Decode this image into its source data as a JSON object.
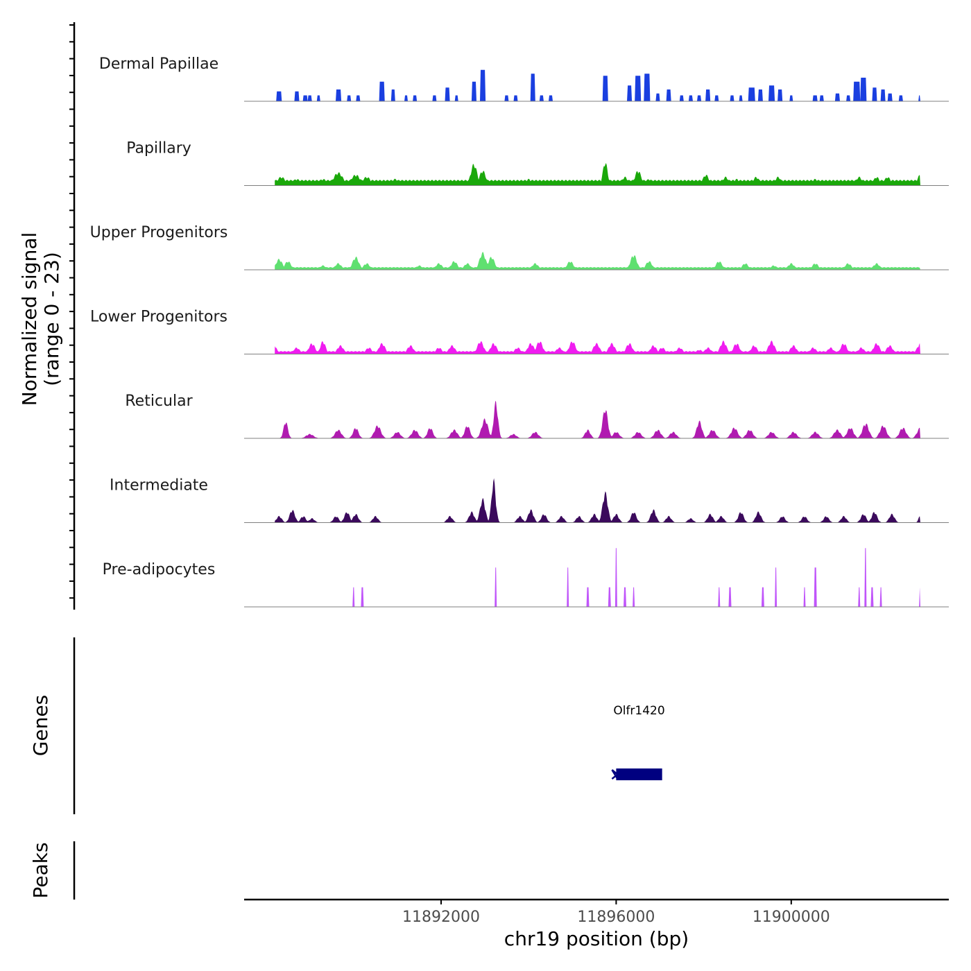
{
  "chart_data": {
    "type": "area",
    "title": "",
    "ylabel": "Normalized signal\n(range 0 - 23)",
    "ylabel_lines": [
      "Normalized signal",
      "(range 0 - 23)"
    ],
    "xlabel": "chr19 position (bp)",
    "x_range": [
      11887500,
      11903600
    ],
    "ylim": [
      0,
      23
    ],
    "x_ticks": [
      11892000,
      11896000,
      11900000
    ],
    "x_tick_labels": [
      "11892000",
      "11896000",
      "11900000"
    ],
    "tracks": [
      {
        "name": "Dermal Papillae",
        "color": "#1a3fe0",
        "style": "blocky",
        "peaks": [
          [
            11888300,
            5,
            9
          ],
          [
            11888700,
            5,
            8
          ],
          [
            11888900,
            3,
            8
          ],
          [
            11889000,
            3,
            6
          ],
          [
            11889200,
            3,
            6
          ],
          [
            11889650,
            6,
            9
          ],
          [
            11889900,
            3,
            6
          ],
          [
            11890100,
            3,
            6
          ],
          [
            11890650,
            10,
            10
          ],
          [
            11890900,
            6,
            6
          ],
          [
            11891200,
            3,
            6
          ],
          [
            11891400,
            3,
            6
          ],
          [
            11891850,
            3,
            6
          ],
          [
            11892150,
            7,
            8
          ],
          [
            11892350,
            3,
            6
          ],
          [
            11892750,
            10,
            8
          ],
          [
            11892950,
            16,
            10
          ],
          [
            11893500,
            3,
            6
          ],
          [
            11893700,
            3,
            6
          ],
          [
            11894100,
            14,
            8
          ],
          [
            11894300,
            3,
            6
          ],
          [
            11894500,
            3,
            6
          ],
          [
            11895750,
            13,
            10
          ],
          [
            11896300,
            8,
            8
          ],
          [
            11896500,
            13,
            10
          ],
          [
            11896700,
            14,
            10
          ],
          [
            11896950,
            4,
            6
          ],
          [
            11897200,
            6,
            8
          ],
          [
            11897500,
            3,
            6
          ],
          [
            11897700,
            3,
            6
          ],
          [
            11897900,
            3,
            6
          ],
          [
            11898100,
            6,
            8
          ],
          [
            11898300,
            3,
            6
          ],
          [
            11898650,
            3,
            6
          ],
          [
            11898850,
            3,
            6
          ],
          [
            11899100,
            7,
            12
          ],
          [
            11899300,
            6,
            8
          ],
          [
            11899550,
            8,
            10
          ],
          [
            11899750,
            6,
            8
          ],
          [
            11900000,
            3,
            6
          ],
          [
            11900550,
            3,
            8
          ],
          [
            11900700,
            3,
            6
          ],
          [
            11901050,
            4,
            8
          ],
          [
            11901300,
            3,
            6
          ],
          [
            11901500,
            10,
            12
          ],
          [
            11901650,
            12,
            10
          ],
          [
            11901900,
            7,
            8
          ],
          [
            11902100,
            6,
            8
          ],
          [
            11902250,
            4,
            8
          ],
          [
            11902500,
            3,
            6
          ],
          [
            11902950,
            3,
            6
          ]
        ]
      },
      {
        "name": "Papillary",
        "color": "#1aa80a",
        "style": "smooth",
        "bg": [
          11888200,
          11902950,
          2.5
        ],
        "peaks": [
          [
            11888350,
            4,
            16
          ],
          [
            11888700,
            3,
            16
          ],
          [
            11889300,
            3,
            16
          ],
          [
            11889650,
            6,
            18
          ],
          [
            11890050,
            5,
            18
          ],
          [
            11890300,
            4,
            16
          ],
          [
            11890950,
            3,
            16
          ],
          [
            11891200,
            2,
            12
          ],
          [
            11892750,
            10,
            12
          ],
          [
            11892950,
            7,
            12
          ],
          [
            11893350,
            2,
            12
          ],
          [
            11893700,
            2,
            12
          ],
          [
            11894000,
            3,
            12
          ],
          [
            11894250,
            2,
            12
          ],
          [
            11895750,
            11,
            9
          ],
          [
            11896200,
            4,
            12
          ],
          [
            11896500,
            7,
            12
          ],
          [
            11896750,
            3,
            12
          ],
          [
            11898050,
            5,
            12
          ],
          [
            11898500,
            4,
            12
          ],
          [
            11898750,
            3,
            12
          ],
          [
            11899200,
            4,
            12
          ],
          [
            11899700,
            4,
            12
          ],
          [
            11900100,
            2,
            12
          ],
          [
            11900550,
            3,
            12
          ],
          [
            11901000,
            2,
            12
          ],
          [
            11901550,
            4,
            12
          ],
          [
            11901950,
            4,
            12
          ],
          [
            11902200,
            4,
            12
          ],
          [
            11902950,
            5,
            12
          ]
        ]
      },
      {
        "name": "Upper Progenitors",
        "color": "#5fe070",
        "style": "smooth",
        "bg": [
          11888200,
          11902950,
          1.2
        ],
        "peaks": [
          [
            11888300,
            5,
            12
          ],
          [
            11888500,
            4,
            12
          ],
          [
            11889300,
            2,
            12
          ],
          [
            11889650,
            3,
            12
          ],
          [
            11890050,
            6,
            12
          ],
          [
            11890300,
            3,
            12
          ],
          [
            11891500,
            2,
            12
          ],
          [
            11891950,
            3,
            12
          ],
          [
            11892300,
            4,
            12
          ],
          [
            11892600,
            3,
            12
          ],
          [
            11892950,
            8,
            12
          ],
          [
            11893150,
            6,
            12
          ],
          [
            11894150,
            3,
            12
          ],
          [
            11894950,
            4,
            12
          ],
          [
            11896400,
            7,
            12
          ],
          [
            11896750,
            4,
            12
          ],
          [
            11898350,
            4,
            12
          ],
          [
            11898950,
            3,
            12
          ],
          [
            11899600,
            2,
            12
          ],
          [
            11900000,
            3,
            12
          ],
          [
            11900550,
            3,
            12
          ],
          [
            11901300,
            3,
            12
          ],
          [
            11901950,
            3,
            12
          ]
        ]
      },
      {
        "name": "Lower Progenitors",
        "color": "#f01cf0",
        "style": "smooth",
        "bg": [
          11888200,
          11902950,
          1.3
        ],
        "peaks": [
          [
            11888200,
            4,
            8
          ],
          [
            11888700,
            3,
            12
          ],
          [
            11889050,
            5,
            12
          ],
          [
            11889300,
            6,
            10
          ],
          [
            11889700,
            4,
            12
          ],
          [
            11890350,
            3,
            12
          ],
          [
            11890650,
            5,
            12
          ],
          [
            11891300,
            4,
            12
          ],
          [
            11891950,
            3,
            12
          ],
          [
            11892250,
            4,
            12
          ],
          [
            11892900,
            6,
            12
          ],
          [
            11893200,
            5,
            12
          ],
          [
            11893750,
            3,
            12
          ],
          [
            11894050,
            5,
            12
          ],
          [
            11894250,
            6,
            12
          ],
          [
            11894700,
            3,
            12
          ],
          [
            11895000,
            6,
            12
          ],
          [
            11895550,
            5,
            12
          ],
          [
            11895900,
            5,
            12
          ],
          [
            11896300,
            5,
            12
          ],
          [
            11896850,
            4,
            12
          ],
          [
            11897050,
            3,
            12
          ],
          [
            11897450,
            3,
            12
          ],
          [
            11897900,
            2,
            12
          ],
          [
            11898100,
            3,
            12
          ],
          [
            11898450,
            6,
            12
          ],
          [
            11898750,
            5,
            12
          ],
          [
            11899150,
            4,
            12
          ],
          [
            11899550,
            6,
            12
          ],
          [
            11900050,
            4,
            12
          ],
          [
            11900500,
            3,
            12
          ],
          [
            11900900,
            3,
            12
          ],
          [
            11901200,
            5,
            12
          ],
          [
            11901600,
            3,
            12
          ],
          [
            11901950,
            5,
            12
          ],
          [
            11902250,
            4,
            12
          ],
          [
            11902950,
            5,
            12
          ]
        ]
      },
      {
        "name": "Reticular",
        "color": "#b01ab0",
        "style": "smooth",
        "bg": [
          11888200,
          11902950,
          0
        ],
        "peaks": [
          [
            11888450,
            8,
            8
          ],
          [
            11889000,
            2,
            14
          ],
          [
            11889650,
            4,
            12
          ],
          [
            11890050,
            5,
            10
          ],
          [
            11890550,
            6,
            12
          ],
          [
            11891000,
            3,
            12
          ],
          [
            11891400,
            4,
            12
          ],
          [
            11891750,
            5,
            10
          ],
          [
            11892300,
            4,
            12
          ],
          [
            11892600,
            6,
            10
          ],
          [
            11893000,
            9,
            12
          ],
          [
            11893250,
            17,
            8
          ],
          [
            11893650,
            2,
            12
          ],
          [
            11894150,
            3,
            12
          ],
          [
            11895350,
            4,
            10
          ],
          [
            11895750,
            14,
            10
          ],
          [
            11896000,
            3,
            12
          ],
          [
            11896500,
            3,
            12
          ],
          [
            11896950,
            4,
            12
          ],
          [
            11897300,
            3,
            12
          ],
          [
            11897900,
            8,
            10
          ],
          [
            11898200,
            4,
            12
          ],
          [
            11898700,
            5,
            12
          ],
          [
            11899050,
            4,
            12
          ],
          [
            11899550,
            3,
            12
          ],
          [
            11900050,
            3,
            12
          ],
          [
            11900550,
            3,
            12
          ],
          [
            11901050,
            4,
            12
          ],
          [
            11901350,
            5,
            12
          ],
          [
            11901700,
            7,
            12
          ],
          [
            11902100,
            6,
            12
          ],
          [
            11902550,
            5,
            12
          ],
          [
            11902950,
            5,
            12
          ]
        ]
      },
      {
        "name": "Intermediate",
        "color": "#3b0a5c",
        "style": "smooth",
        "bg": [
          11888200,
          11902950,
          0
        ],
        "peaks": [
          [
            11888300,
            3,
            10
          ],
          [
            11888600,
            6,
            10
          ],
          [
            11888850,
            3,
            10
          ],
          [
            11889050,
            2,
            10
          ],
          [
            11889600,
            3,
            10
          ],
          [
            11889850,
            5,
            10
          ],
          [
            11890050,
            4,
            10
          ],
          [
            11890500,
            3,
            10
          ],
          [
            11892200,
            3,
            10
          ],
          [
            11892700,
            5,
            10
          ],
          [
            11892950,
            11,
            10
          ],
          [
            11893200,
            20,
            8
          ],
          [
            11893800,
            3,
            10
          ],
          [
            11894050,
            6,
            10
          ],
          [
            11894350,
            4,
            10
          ],
          [
            11894750,
            3,
            10
          ],
          [
            11895150,
            3,
            10
          ],
          [
            11895500,
            4,
            10
          ],
          [
            11895750,
            14,
            10
          ],
          [
            11896000,
            4,
            10
          ],
          [
            11896400,
            5,
            10
          ],
          [
            11896850,
            6,
            10
          ],
          [
            11897200,
            3,
            10
          ],
          [
            11897700,
            2,
            10
          ],
          [
            11898150,
            4,
            10
          ],
          [
            11898400,
            3,
            10
          ],
          [
            11898850,
            5,
            10
          ],
          [
            11899250,
            5,
            10
          ],
          [
            11899800,
            3,
            10
          ],
          [
            11900300,
            3,
            10
          ],
          [
            11900800,
            3,
            10
          ],
          [
            11901200,
            3,
            10
          ],
          [
            11901650,
            4,
            10
          ],
          [
            11901900,
            5,
            10
          ],
          [
            11902300,
            4,
            10
          ],
          [
            11902950,
            4,
            6
          ]
        ]
      },
      {
        "name": "Pre-adipocytes",
        "color": "#c055fa",
        "style": "blocky",
        "bg": [
          11888200,
          11902950,
          0
        ],
        "peaks": [
          [
            11890000,
            10,
            3
          ],
          [
            11890200,
            10,
            3
          ],
          [
            11893250,
            20,
            3
          ],
          [
            11894900,
            20,
            3
          ],
          [
            11895350,
            10,
            3
          ],
          [
            11895850,
            10,
            3
          ],
          [
            11896000,
            30,
            2
          ],
          [
            11896200,
            10,
            3
          ],
          [
            11896400,
            10,
            3
          ],
          [
            11898350,
            10,
            3
          ],
          [
            11898600,
            10,
            3
          ],
          [
            11899350,
            10,
            3
          ],
          [
            11899650,
            20,
            3
          ],
          [
            11900300,
            10,
            3
          ],
          [
            11900550,
            20,
            3
          ],
          [
            11901550,
            10,
            3
          ],
          [
            11901700,
            30,
            3
          ],
          [
            11901850,
            10,
            3
          ],
          [
            11902050,
            10,
            3
          ],
          [
            11902950,
            10,
            3
          ]
        ]
      }
    ],
    "genes_track": {
      "label": "Genes",
      "genes": [
        {
          "name": "Olfr1420",
          "start": 11896000,
          "end": 11897050,
          "strand": "-"
        }
      ]
    },
    "peaks_track": {
      "label": "Peaks",
      "peaks": []
    }
  }
}
